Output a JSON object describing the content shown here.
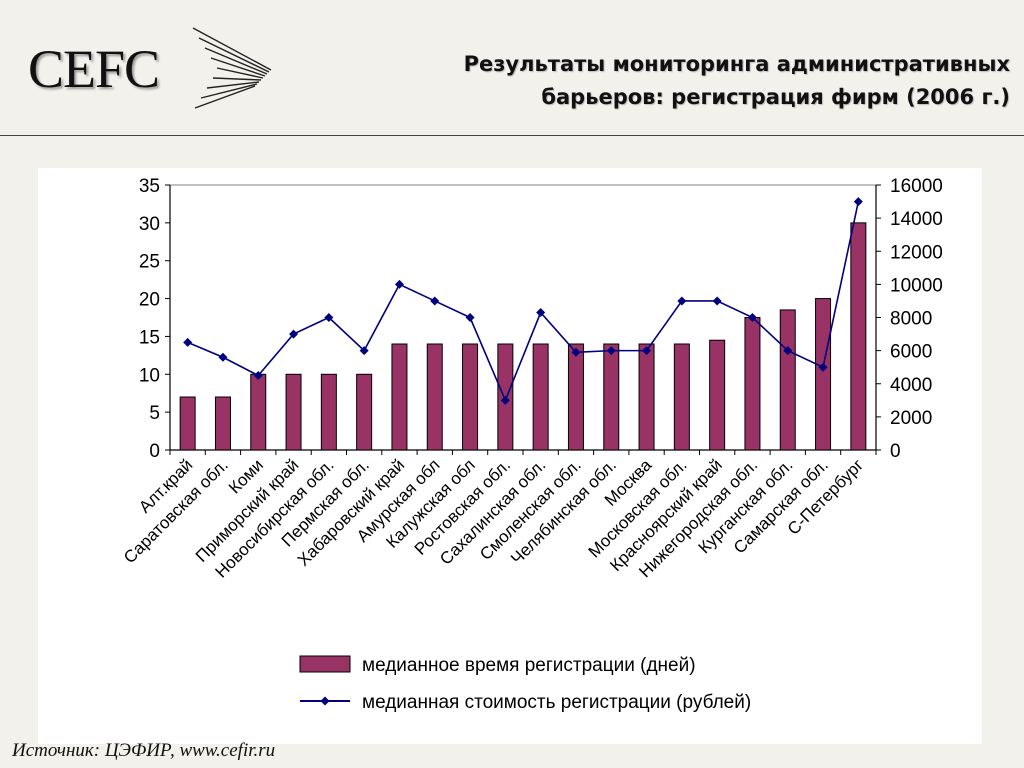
{
  "header": {
    "logo": "CEFC",
    "title_line1": "Результаты мониторинга административных",
    "title_line2": "барьеров: регистрация фирм (2006 г.)"
  },
  "source": "Источник: ЦЭФИР, www.cefir.ru",
  "colors": {
    "bar_fill": "#993366",
    "line": "#000080",
    "axis": "#000000",
    "background": "#f3f1ec"
  },
  "chart_data": {
    "type": "bar",
    "categories": [
      "Алт.край",
      "Саратовская обл.",
      "Коми",
      "Приморский край",
      "Новосибирская обл.",
      "Пермская обл.",
      "Хабаровский край",
      "Амурская обл",
      "Калужская обл",
      "Ростовская обл.",
      "Сахалинская обл.",
      "Смоленская обл.",
      "Челябинская обл.",
      "Москва",
      "Московская обл.",
      "Красноярский край",
      "Нижегородская обл.",
      "Курганская обл.",
      "Самарская обл.",
      "С-Петербург"
    ],
    "series": [
      {
        "name": "медианное время регистрации (дней)",
        "type": "bar",
        "axis": "left",
        "values": [
          7,
          7,
          10,
          10,
          10,
          10,
          14,
          14,
          14,
          14,
          14,
          14,
          14,
          14,
          14,
          14.5,
          17.5,
          18.5,
          20,
          30
        ]
      },
      {
        "name": "медианная стоимость регистрации (рублей)",
        "type": "line",
        "axis": "right",
        "values": [
          6500,
          5600,
          4500,
          7000,
          8000,
          6000,
          10000,
          9000,
          8000,
          3000,
          8300,
          5900,
          6000,
          6000,
          9000,
          9000,
          8000,
          6000,
          5000,
          15000
        ]
      }
    ],
    "y_left": {
      "ylim": [
        0,
        35
      ],
      "ticks": [
        "0",
        "5",
        "10",
        "15",
        "20",
        "25",
        "30",
        "35"
      ]
    },
    "y_right": {
      "ylim": [
        0,
        16000
      ],
      "ticks": [
        "0",
        "2000",
        "4000",
        "6000",
        "8000",
        "10000",
        "12000",
        "14000",
        "16000"
      ]
    },
    "grid": false,
    "legend_position": "bottom"
  }
}
